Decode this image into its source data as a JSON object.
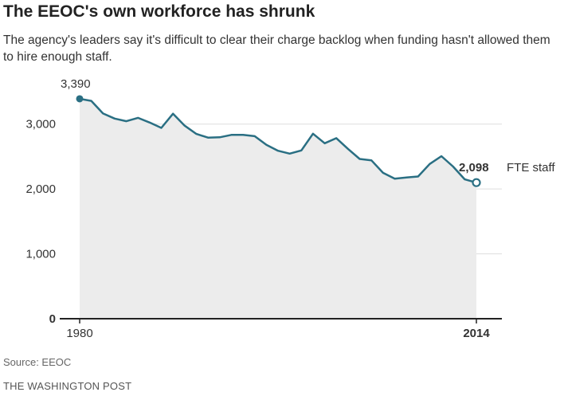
{
  "header": {
    "title": "The EEOC's own workforce has shrunk",
    "subtitle": "The agency's leaders say it's difficult to clear their charge backlog when funding hasn't allowed them to hire enough staff."
  },
  "footer": {
    "source": "Source: EEOC",
    "credit": "THE WASHINGTON POST"
  },
  "colors": {
    "line": "#2a6f83",
    "area": "#ececec",
    "grid": "#dddddd",
    "axis": "#222222"
  },
  "chart_data": {
    "type": "area",
    "title": "The EEOC's own workforce has shrunk",
    "xlabel": "",
    "ylabel": "",
    "xlim": [
      1980,
      2014
    ],
    "ylim": [
      0,
      3500
    ],
    "grid": true,
    "x_tick_labels": [
      "1980",
      "2014"
    ],
    "y_tick_labels": [
      "0",
      "1,000",
      "2,000",
      "3,000"
    ],
    "y_ticks": [
      0,
      1000,
      2000,
      3000
    ],
    "series": [
      {
        "x": [
          1980,
          1981,
          1982,
          1983,
          1984,
          1985,
          1986,
          1987,
          1988,
          1989,
          1990,
          1991,
          1992,
          1993,
          1994,
          1995,
          1996,
          1997,
          1998,
          1999,
          2000,
          2001,
          2002,
          2003,
          2004,
          2005,
          2006,
          2007,
          2008,
          2009,
          2010,
          2011,
          2012,
          2013,
          2014
        ],
        "values": [
          3390,
          3358,
          3163,
          3085,
          3044,
          3096,
          3024,
          2941,
          3160,
          2976,
          2848,
          2791,
          2796,
          2833,
          2833,
          2813,
          2680,
          2589,
          2544,
          2594,
          2852,
          2704,
          2783,
          2617,
          2462,
          2441,
          2249,
          2158,
          2176,
          2192,
          2385,
          2505,
          2346,
          2148,
          2098
        ]
      }
    ],
    "annotations": {
      "start_value": "3,390",
      "end_value": "2,098",
      "end_unit": "FTE staff"
    }
  }
}
